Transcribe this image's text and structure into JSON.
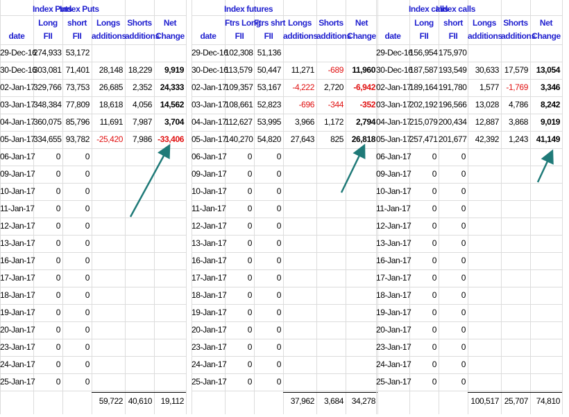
{
  "sections": [
    {
      "title_a": "Index Puts",
      "title_b": "Index Puts",
      "headers": [
        [
          "",
          "date"
        ],
        [
          "Long",
          "FII"
        ],
        [
          "short",
          "FII"
        ],
        [
          "Longs",
          "additions"
        ],
        [
          "Shorts",
          "additions"
        ],
        [
          "Net",
          "Change"
        ]
      ],
      "rows": [
        [
          "29-Dec-16",
          "274,933",
          "53,172",
          "",
          "",
          ""
        ],
        [
          "30-Dec-16",
          "303,081",
          "71,401",
          "28,148",
          "18,229",
          "9,919"
        ],
        [
          "02-Jan-17",
          "329,766",
          "73,753",
          "26,685",
          "2,352",
          "24,333"
        ],
        [
          "03-Jan-17",
          "348,384",
          "77,809",
          "18,618",
          "4,056",
          "14,562"
        ],
        [
          "04-Jan-17",
          "360,075",
          "85,796",
          "11,691",
          "7,987",
          "3,704"
        ],
        [
          "05-Jan-17",
          "334,655",
          "93,782",
          "-25,420",
          "7,986",
          "-33,406"
        ],
        [
          "06-Jan-17",
          "0",
          "0",
          "",
          "",
          ""
        ],
        [
          "09-Jan-17",
          "0",
          "0",
          "",
          "",
          ""
        ],
        [
          "10-Jan-17",
          "0",
          "0",
          "",
          "",
          ""
        ],
        [
          "11-Jan-17",
          "0",
          "0",
          "",
          "",
          ""
        ],
        [
          "12-Jan-17",
          "0",
          "0",
          "",
          "",
          ""
        ],
        [
          "13-Jan-17",
          "0",
          "0",
          "",
          "",
          ""
        ],
        [
          "16-Jan-17",
          "0",
          "0",
          "",
          "",
          ""
        ],
        [
          "17-Jan-17",
          "0",
          "0",
          "",
          "",
          ""
        ],
        [
          "18-Jan-17",
          "0",
          "0",
          "",
          "",
          ""
        ],
        [
          "19-Jan-17",
          "0",
          "0",
          "",
          "",
          ""
        ],
        [
          "20-Jan-17",
          "0",
          "0",
          "",
          "",
          ""
        ],
        [
          "23-Jan-17",
          "0",
          "0",
          "",
          "",
          ""
        ],
        [
          "24-Jan-17",
          "0",
          "0",
          "",
          "",
          ""
        ],
        [
          "25-Jan-17",
          "0",
          "0",
          "",
          "",
          ""
        ]
      ],
      "totals": [
        "59,722",
        "40,610",
        "19,112"
      ]
    },
    {
      "title_a": "Index futures",
      "title_b": "",
      "headers": [
        [
          "",
          "date"
        ],
        [
          "Ftrs Long",
          "FII"
        ],
        [
          "Ftrs shrt",
          "FII"
        ],
        [
          "Longs",
          "additions"
        ],
        [
          "Shorts",
          "additions"
        ],
        [
          "Net",
          "Change"
        ]
      ],
      "rows": [
        [
          "29-Dec-16",
          "102,308",
          "51,136",
          "",
          "",
          ""
        ],
        [
          "30-Dec-16",
          "113,579",
          "50,447",
          "11,271",
          "-689",
          "11,960"
        ],
        [
          "02-Jan-17",
          "109,357",
          "53,167",
          "-4,222",
          "2,720",
          "-6,942"
        ],
        [
          "03-Jan-17",
          "108,661",
          "52,823",
          "-696",
          "-344",
          "-352"
        ],
        [
          "04-Jan-17",
          "112,627",
          "53,995",
          "3,966",
          "1,172",
          "2,794"
        ],
        [
          "05-Jan-17",
          "140,270",
          "54,820",
          "27,643",
          "825",
          "26,818"
        ],
        [
          "06-Jan-17",
          "0",
          "0",
          "",
          "",
          ""
        ],
        [
          "09-Jan-17",
          "0",
          "0",
          "",
          "",
          ""
        ],
        [
          "10-Jan-17",
          "0",
          "0",
          "",
          "",
          ""
        ],
        [
          "11-Jan-17",
          "0",
          "0",
          "",
          "",
          ""
        ],
        [
          "12-Jan-17",
          "0",
          "0",
          "",
          "",
          ""
        ],
        [
          "13-Jan-17",
          "0",
          "0",
          "",
          "",
          ""
        ],
        [
          "16-Jan-17",
          "0",
          "0",
          "",
          "",
          ""
        ],
        [
          "17-Jan-17",
          "0",
          "0",
          "",
          "",
          ""
        ],
        [
          "18-Jan-17",
          "0",
          "0",
          "",
          "",
          ""
        ],
        [
          "19-Jan-17",
          "0",
          "0",
          "",
          "",
          ""
        ],
        [
          "20-Jan-17",
          "0",
          "0",
          "",
          "",
          ""
        ],
        [
          "23-Jan-17",
          "0",
          "0",
          "",
          "",
          ""
        ],
        [
          "24-Jan-17",
          "0",
          "0",
          "",
          "",
          ""
        ],
        [
          "25-Jan-17",
          "0",
          "0",
          "",
          "",
          ""
        ]
      ],
      "totals": [
        "37,962",
        "3,684",
        "34,278"
      ]
    },
    {
      "title_a": "Index calls",
      "title_b": "Index calls",
      "headers": [
        [
          "",
          "date"
        ],
        [
          "Long",
          "FII"
        ],
        [
          "short",
          "FII"
        ],
        [
          "Longs",
          "additions"
        ],
        [
          "Shorts",
          "additions"
        ],
        [
          "Net",
          "Change"
        ]
      ],
      "rows": [
        [
          "29-Dec-16",
          "156,954",
          "175,970",
          "",
          "",
          ""
        ],
        [
          "30-Dec-16",
          "187,587",
          "193,549",
          "30,633",
          "17,579",
          "13,054"
        ],
        [
          "02-Jan-17",
          "189,164",
          "191,780",
          "1,577",
          "-1,769",
          "3,346"
        ],
        [
          "03-Jan-17",
          "202,192",
          "196,566",
          "13,028",
          "4,786",
          "8,242"
        ],
        [
          "04-Jan-17",
          "215,079",
          "200,434",
          "12,887",
          "3,868",
          "9,019"
        ],
        [
          "05-Jan-17",
          "257,471",
          "201,677",
          "42,392",
          "1,243",
          "41,149"
        ],
        [
          "06-Jan-17",
          "0",
          "0",
          "",
          "",
          ""
        ],
        [
          "09-Jan-17",
          "0",
          "0",
          "",
          "",
          ""
        ],
        [
          "10-Jan-17",
          "0",
          "0",
          "",
          "",
          ""
        ],
        [
          "11-Jan-17",
          "0",
          "0",
          "",
          "",
          ""
        ],
        [
          "12-Jan-17",
          "0",
          "0",
          "",
          "",
          ""
        ],
        [
          "13-Jan-17",
          "0",
          "0",
          "",
          "",
          ""
        ],
        [
          "16-Jan-17",
          "0",
          "0",
          "",
          "",
          ""
        ],
        [
          "17-Jan-17",
          "0",
          "0",
          "",
          "",
          ""
        ],
        [
          "18-Jan-17",
          "0",
          "0",
          "",
          "",
          ""
        ],
        [
          "19-Jan-17",
          "0",
          "0",
          "",
          "",
          ""
        ],
        [
          "20-Jan-17",
          "0",
          "0",
          "",
          "",
          ""
        ],
        [
          "23-Jan-17",
          "0",
          "0",
          "",
          "",
          ""
        ],
        [
          "24-Jan-17",
          "0",
          "0",
          "",
          "",
          ""
        ],
        [
          "25-Jan-17",
          "0",
          "0",
          "",
          "",
          ""
        ]
      ],
      "totals": [
        "100,517",
        "25,707",
        "74,810"
      ]
    }
  ],
  "colors": {
    "header_text": "#1f1fcf",
    "negative_text": "#e01010",
    "arrow": "#1f7a78",
    "gridline": "#dcdcdc"
  }
}
